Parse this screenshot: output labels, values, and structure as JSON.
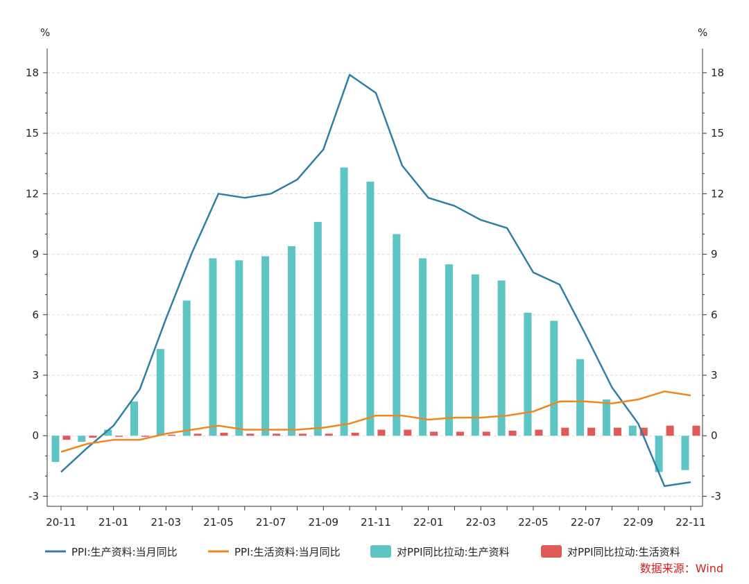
{
  "chart_data": {
    "type": "bar+line",
    "left_unit": "%",
    "right_unit": "%",
    "y_ticks": [
      -3,
      0,
      3,
      6,
      9,
      12,
      15,
      18
    ],
    "ylim": [
      -3.5,
      19.2
    ],
    "grid": true,
    "legend_placement": "bottom",
    "categories": [
      "20-11",
      "20-12",
      "21-01",
      "21-02",
      "21-03",
      "21-04",
      "21-05",
      "21-06",
      "21-07",
      "21-08",
      "21-09",
      "21-10",
      "21-11",
      "21-12",
      "22-01",
      "22-02",
      "22-03",
      "22-04",
      "22-05",
      "22-06",
      "22-07",
      "22-08",
      "22-09",
      "22-10",
      "22-11"
    ],
    "x_tick_labels": [
      "20-11",
      "21-01",
      "21-03",
      "21-05",
      "21-07",
      "21-09",
      "21-11",
      "22-01",
      "22-03",
      "22-05",
      "22-07",
      "22-09",
      "22-11"
    ],
    "series": [
      {
        "name": "PPI:生产资料:当月同比",
        "kind": "line",
        "color": "#2e7ea6",
        "values": [
          -1.8,
          -0.6,
          0.5,
          2.3,
          5.8,
          9.1,
          12.0,
          11.8,
          12.0,
          12.7,
          14.2,
          17.9,
          17.0,
          13.4,
          11.8,
          11.4,
          10.7,
          10.3,
          8.1,
          7.5,
          5.0,
          2.4,
          0.6,
          -2.5,
          -2.3
        ]
      },
      {
        "name": "PPI:生活资料:当月同比",
        "kind": "line",
        "color": "#f0871e",
        "values": [
          -0.8,
          -0.4,
          -0.2,
          -0.2,
          0.1,
          0.3,
          0.5,
          0.3,
          0.3,
          0.3,
          0.4,
          0.6,
          1.0,
          1.0,
          0.8,
          0.9,
          0.9,
          1.0,
          1.2,
          1.7,
          1.7,
          1.6,
          1.8,
          2.2,
          2.0
        ]
      },
      {
        "name": "对PPI同比拉动:生产资料",
        "kind": "bar",
        "color": "#5ec4c4",
        "values": [
          -1.3,
          -0.3,
          0.3,
          1.7,
          4.3,
          6.7,
          8.8,
          8.7,
          8.9,
          9.4,
          10.6,
          13.3,
          12.6,
          10.0,
          8.8,
          8.5,
          8.0,
          7.7,
          6.1,
          5.7,
          3.8,
          1.8,
          0.5,
          -1.8,
          -1.7
        ]
      },
      {
        "name": "对PPI同比拉动:生活资料",
        "kind": "bar",
        "color": "#e05a5a",
        "values": [
          -0.2,
          -0.1,
          -0.05,
          -0.05,
          0.05,
          0.1,
          0.15,
          0.1,
          0.1,
          0.1,
          0.1,
          0.15,
          0.3,
          0.3,
          0.2,
          0.2,
          0.2,
          0.25,
          0.3,
          0.4,
          0.4,
          0.4,
          0.4,
          0.5,
          0.5
        ]
      }
    ],
    "source": "数据来源：Wind"
  }
}
